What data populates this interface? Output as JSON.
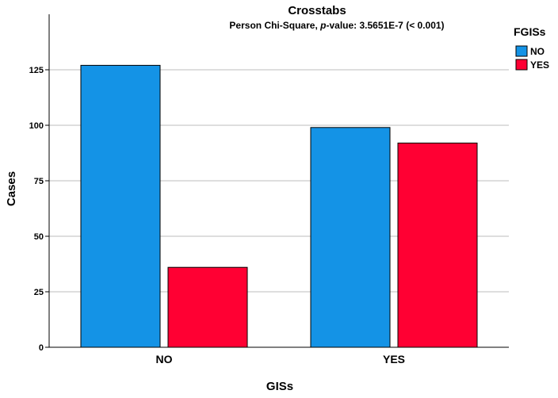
{
  "chart_data": {
    "type": "bar",
    "title": "Crosstabs",
    "subtitle": {
      "prefix": "Person Chi-Square, ",
      "italic": "p",
      "suffix": "-value: 3.5651E-7 (< 0.001)"
    },
    "xlabel": "GISs",
    "ylabel": "Cases",
    "categories": [
      "NO",
      "YES"
    ],
    "series": [
      {
        "name": "NO",
        "values": [
          127,
          99
        ],
        "color": "#1493e6"
      },
      {
        "name": "YES",
        "values": [
          36,
          92
        ],
        "color": "#ff0033"
      }
    ],
    "ylim": [
      0,
      150
    ],
    "yticks": [
      0,
      25,
      50,
      75,
      100,
      125
    ],
    "grid": true,
    "legend": {
      "title": "FGISs",
      "placement": "top-right"
    }
  }
}
